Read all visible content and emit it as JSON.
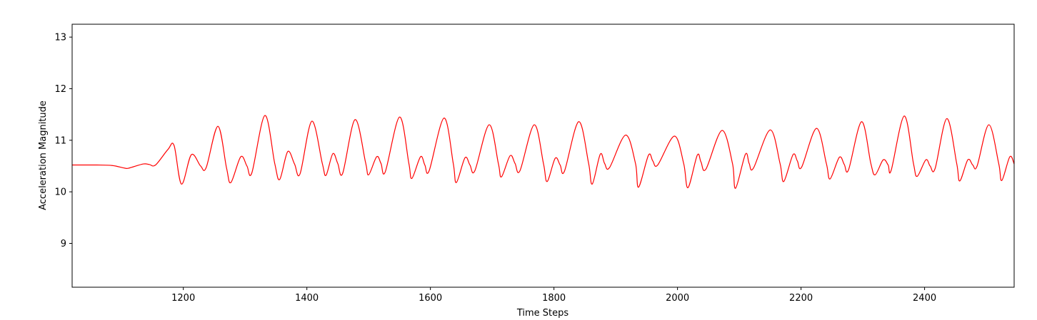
{
  "chart_data": {
    "type": "line",
    "title": "",
    "xlabel": "Time Steps",
    "ylabel": "Acceleration Magnitude",
    "xlim": [
      1020,
      2545
    ],
    "ylim": [
      8.15,
      13.25
    ],
    "xticks": [
      1200,
      1400,
      1600,
      1800,
      2000,
      2200,
      2400
    ],
    "xtick_labels": [
      "1200",
      "1400",
      "1600",
      "1800",
      "2000",
      "2200",
      "2400"
    ],
    "yticks": [
      9,
      10,
      11,
      12,
      13
    ],
    "ytick_labels": [
      "9",
      "10",
      "11",
      "12",
      "13"
    ],
    "grid": false,
    "legend": "none",
    "series": [
      {
        "color": "#ff0000",
        "x": [
          1020,
          1060,
          1085,
          1105,
          1112,
          1135,
          1145,
          1155,
          1175,
          1185,
          1197,
          1213,
          1228,
          1237,
          1256,
          1270,
          1277,
          1293,
          1303,
          1311,
          1332,
          1348,
          1356,
          1369,
          1380,
          1389,
          1408,
          1425,
          1431,
          1442,
          1450,
          1458,
          1478,
          1495,
          1500,
          1513,
          1520,
          1527,
          1550,
          1565,
          1570,
          1584,
          1591,
          1598,
          1622,
          1637,
          1642,
          1656,
          1664,
          1672,
          1695,
          1710,
          1715,
          1729,
          1737,
          1745,
          1768,
          1783,
          1789,
          1802,
          1810,
          1817,
          1840,
          1856,
          1862,
          1875,
          1882,
          1890,
          1916,
          1932,
          1937,
          1953,
          1960,
          1968,
          1995,
          2010,
          2017,
          2032,
          2038,
          2046,
          2072,
          2089,
          2094,
          2110,
          2116,
          2123,
          2150,
          2166,
          2172,
          2187,
          2194,
          2201,
          2225,
          2241,
          2247,
          2262,
          2270,
          2277,
          2298,
          2313,
          2320,
          2333,
          2341,
          2346,
          2367,
          2382,
          2388,
          2402,
          2409,
          2417,
          2436,
          2452,
          2457,
          2470,
          2478,
          2485,
          2504,
          2520,
          2525,
          2538,
          2545
        ],
        "y": [
          10.52,
          10.52,
          10.51,
          10.46,
          10.46,
          10.54,
          10.53,
          10.52,
          10.82,
          10.9,
          10.15,
          10.72,
          10.5,
          10.47,
          11.27,
          10.46,
          10.18,
          10.68,
          10.5,
          10.37,
          11.48,
          10.55,
          10.24,
          10.78,
          10.54,
          10.35,
          11.37,
          10.55,
          10.32,
          10.74,
          10.55,
          10.36,
          11.4,
          10.57,
          10.33,
          10.68,
          10.55,
          10.39,
          11.45,
          10.56,
          10.26,
          10.68,
          10.52,
          10.41,
          11.43,
          10.55,
          10.18,
          10.66,
          10.52,
          10.41,
          11.3,
          10.55,
          10.29,
          10.7,
          10.55,
          10.41,
          11.3,
          10.55,
          10.2,
          10.65,
          10.52,
          10.4,
          11.36,
          10.56,
          10.15,
          10.73,
          10.55,
          10.47,
          11.1,
          10.55,
          10.09,
          10.71,
          10.6,
          10.52,
          11.08,
          10.55,
          10.08,
          10.71,
          10.58,
          10.44,
          11.19,
          10.55,
          10.07,
          10.73,
          10.55,
          10.46,
          11.2,
          10.55,
          10.2,
          10.72,
          10.6,
          10.48,
          11.23,
          10.55,
          10.25,
          10.67,
          10.53,
          10.43,
          11.36,
          10.55,
          10.33,
          10.62,
          10.52,
          10.42,
          11.47,
          10.55,
          10.3,
          10.62,
          10.5,
          10.45,
          11.42,
          10.55,
          10.21,
          10.62,
          10.52,
          10.5,
          11.3,
          10.55,
          10.22,
          10.68,
          10.54
        ]
      }
    ]
  }
}
